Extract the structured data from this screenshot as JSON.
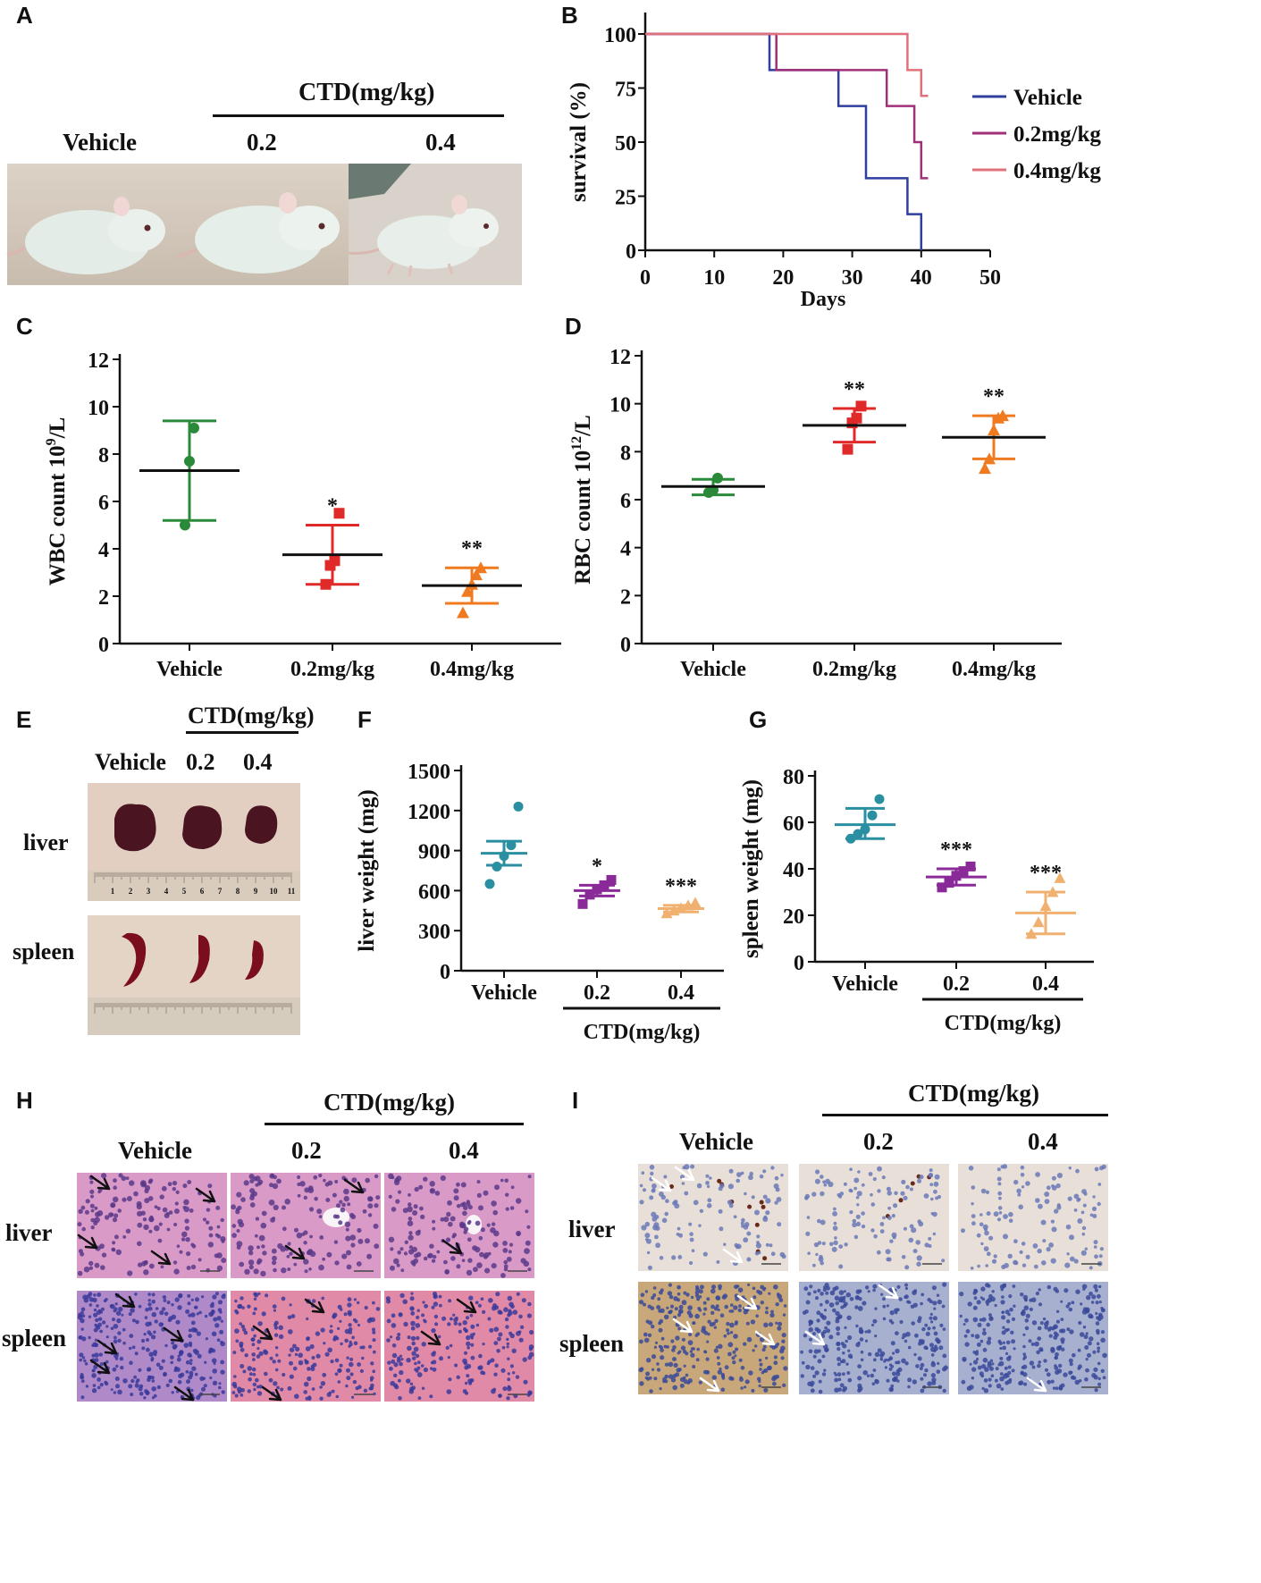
{
  "panels": {
    "A": {
      "label": "A",
      "cond_header": "CTD(mg/kg)",
      "groups": [
        "Vehicle",
        "0.2",
        "0.4"
      ]
    },
    "B": {
      "label": "B"
    },
    "C": {
      "label": "C"
    },
    "D": {
      "label": "D"
    },
    "E": {
      "label": "E",
      "cond_header": "CTD(mg/kg)",
      "groups": [
        "Vehicle",
        "0.2",
        "0.4"
      ],
      "rows": [
        "liver",
        "spleen"
      ],
      "ruler_numbers": [
        "1",
        "2",
        "3",
        "4",
        "5",
        "6",
        "7",
        "8",
        "9",
        "10",
        "11"
      ]
    },
    "F": {
      "label": "F"
    },
    "G": {
      "label": "G"
    },
    "H": {
      "label": "H",
      "cond_header": "CTD(mg/kg)",
      "groups": [
        "Vehicle",
        "0.2",
        "0.4"
      ],
      "rows": [
        "liver",
        "spleen"
      ]
    },
    "I": {
      "label": "I",
      "cond_header": "CTD(mg/kg)",
      "groups": [
        "Vehicle",
        "0.2",
        "0.4"
      ],
      "rows": [
        "liver",
        "spleen"
      ]
    }
  },
  "colors": {
    "vehicle": "#2f3f9f",
    "dose02": "#a0307a",
    "dose04": "#e0707a",
    "green": "#2a8a3a",
    "red": "#e02a2a",
    "orange": "#f07a20",
    "teal": "#2a8fa0",
    "purple": "#8a2a98",
    "peach": "#f0b070",
    "mean": "#111111"
  },
  "chart_data": [
    {
      "id": "B",
      "type": "line",
      "step": true,
      "xlabel": "Days",
      "ylabel": "survival (%)",
      "xlim": [
        0,
        50
      ],
      "ylim": [
        0,
        100
      ],
      "xticks": [
        "0",
        "10",
        "20",
        "30",
        "40",
        "50"
      ],
      "yticks": [
        "0",
        "25",
        "50",
        "75",
        "100"
      ],
      "series": [
        {
          "name": "Vehicle",
          "color": "#2f3f9f",
          "points": [
            [
              0,
              100
            ],
            [
              18,
              100
            ],
            [
              18,
              83.3
            ],
            [
              28,
              83.3
            ],
            [
              28,
              66.7
            ],
            [
              32,
              66.7
            ],
            [
              32,
              33.3
            ],
            [
              38,
              33.3
            ],
            [
              38,
              16.7
            ],
            [
              40,
              16.7
            ],
            [
              40,
              0
            ]
          ]
        },
        {
          "name": "0.2mg/kg",
          "color": "#a0307a",
          "points": [
            [
              0,
              100
            ],
            [
              19,
              100
            ],
            [
              19,
              83.3
            ],
            [
              35,
              83.3
            ],
            [
              35,
              66.7
            ],
            [
              39,
              66.7
            ],
            [
              39,
              50
            ],
            [
              40,
              50
            ],
            [
              40,
              33.3
            ],
            [
              41,
              33.3
            ]
          ]
        },
        {
          "name": "0.4mg/kg",
          "color": "#e0707a",
          "points": [
            [
              0,
              100
            ],
            [
              38,
              100
            ],
            [
              38,
              83.3
            ],
            [
              40,
              83.3
            ],
            [
              40,
              71.4
            ],
            [
              41,
              71.4
            ]
          ]
        }
      ]
    },
    {
      "id": "C",
      "type": "scatter",
      "ylabel": "WBC count 10",
      "ylabel_sup": "9",
      "ylabel_tail": "/L",
      "ylim": [
        0,
        12
      ],
      "yticks": [
        "0",
        "2",
        "4",
        "6",
        "8",
        "10",
        "12"
      ],
      "categories": [
        "Vehicle",
        "0.2mg/kg",
        "0.4mg/kg"
      ],
      "groups": [
        {
          "name": "Vehicle",
          "color": "#2a8a3a",
          "marker": "circle",
          "mean": 7.3,
          "sd_low": 5.2,
          "sd_high": 9.4,
          "points": [
            5.0,
            7.7,
            9.1
          ],
          "sig": ""
        },
        {
          "name": "0.2mg/kg",
          "color": "#e02a2a",
          "marker": "square",
          "mean": 3.75,
          "sd_low": 2.5,
          "sd_high": 5.0,
          "points": [
            2.5,
            3.3,
            3.5,
            5.5
          ],
          "sig": "*"
        },
        {
          "name": "0.4mg/kg",
          "color": "#f07a20",
          "marker": "triangle",
          "mean": 2.45,
          "sd_low": 1.7,
          "sd_high": 3.2,
          "points": [
            1.3,
            2.2,
            2.5,
            2.9,
            3.2
          ],
          "sig": "**"
        }
      ]
    },
    {
      "id": "D",
      "type": "scatter",
      "ylabel": "RBC count 10",
      "ylabel_sup": "12",
      "ylabel_tail": "/L",
      "ylim": [
        0,
        12
      ],
      "yticks": [
        "0",
        "2",
        "4",
        "6",
        "8",
        "10",
        "12"
      ],
      "categories": [
        "Vehicle",
        "0.2mg/kg",
        "0.4mg/kg"
      ],
      "groups": [
        {
          "name": "Vehicle",
          "color": "#2a8a3a",
          "marker": "circle",
          "mean": 6.55,
          "sd_low": 6.2,
          "sd_high": 6.85,
          "points": [
            6.3,
            6.4,
            6.9
          ],
          "sig": ""
        },
        {
          "name": "0.2mg/kg",
          "color": "#e02a2a",
          "marker": "square",
          "mean": 9.1,
          "sd_low": 8.4,
          "sd_high": 9.8,
          "points": [
            8.1,
            9.2,
            9.4,
            9.9
          ],
          "sig": "**"
        },
        {
          "name": "0.4mg/kg",
          "color": "#f07a20",
          "marker": "triangle",
          "mean": 8.6,
          "sd_low": 7.7,
          "sd_high": 9.5,
          "points": [
            7.3,
            7.7,
            8.9,
            9.4,
            9.5
          ],
          "sig": "**"
        }
      ]
    },
    {
      "id": "F",
      "type": "scatter",
      "ylabel": "liver weight (mg)",
      "ylim": [
        0,
        1500
      ],
      "yticks": [
        "0",
        "300",
        "600",
        "900",
        "1200",
        "1500"
      ],
      "categories": [
        "Vehicle",
        "0.2",
        "0.4"
      ],
      "group_label": "CTD(mg/kg)",
      "groups": [
        {
          "name": "Vehicle",
          "color": "#2a8fa0",
          "marker": "circle",
          "mean": 880,
          "sd_low": 790,
          "sd_high": 970,
          "points": [
            650,
            780,
            860,
            940,
            1230
          ],
          "sig": ""
        },
        {
          "name": "0.2",
          "color": "#8a2a98",
          "marker": "square",
          "mean": 600,
          "sd_low": 560,
          "sd_high": 640,
          "points": [
            500,
            570,
            610,
            640,
            680
          ],
          "sig": "*"
        },
        {
          "name": "0.4",
          "color": "#f0b070",
          "marker": "triangle",
          "mean": 465,
          "sd_low": 440,
          "sd_high": 490,
          "points": [
            430,
            450,
            470,
            490,
            510
          ],
          "sig": "***"
        }
      ]
    },
    {
      "id": "G",
      "type": "scatter",
      "ylabel": "spleen weight (mg)",
      "ylim": [
        0,
        80
      ],
      "yticks": [
        "0",
        "20",
        "40",
        "60",
        "80"
      ],
      "categories": [
        "Vehicle",
        "0.2",
        "0.4"
      ],
      "group_label": "CTD(mg/kg)",
      "groups": [
        {
          "name": "Vehicle",
          "color": "#2a8fa0",
          "marker": "circle",
          "mean": 59,
          "sd_low": 53,
          "sd_high": 66,
          "points": [
            53,
            55,
            57,
            63,
            70
          ],
          "sig": ""
        },
        {
          "name": "0.2",
          "color": "#8a2a98",
          "marker": "square",
          "mean": 36.5,
          "sd_low": 33,
          "sd_high": 40,
          "points": [
            32,
            34,
            37,
            39,
            41
          ],
          "sig": "***"
        },
        {
          "name": "0.4",
          "color": "#f0b070",
          "marker": "triangle",
          "mean": 21,
          "sd_low": 12,
          "sd_high": 30,
          "points": [
            12,
            17,
            24,
            30,
            36
          ],
          "sig": "***"
        }
      ]
    }
  ]
}
